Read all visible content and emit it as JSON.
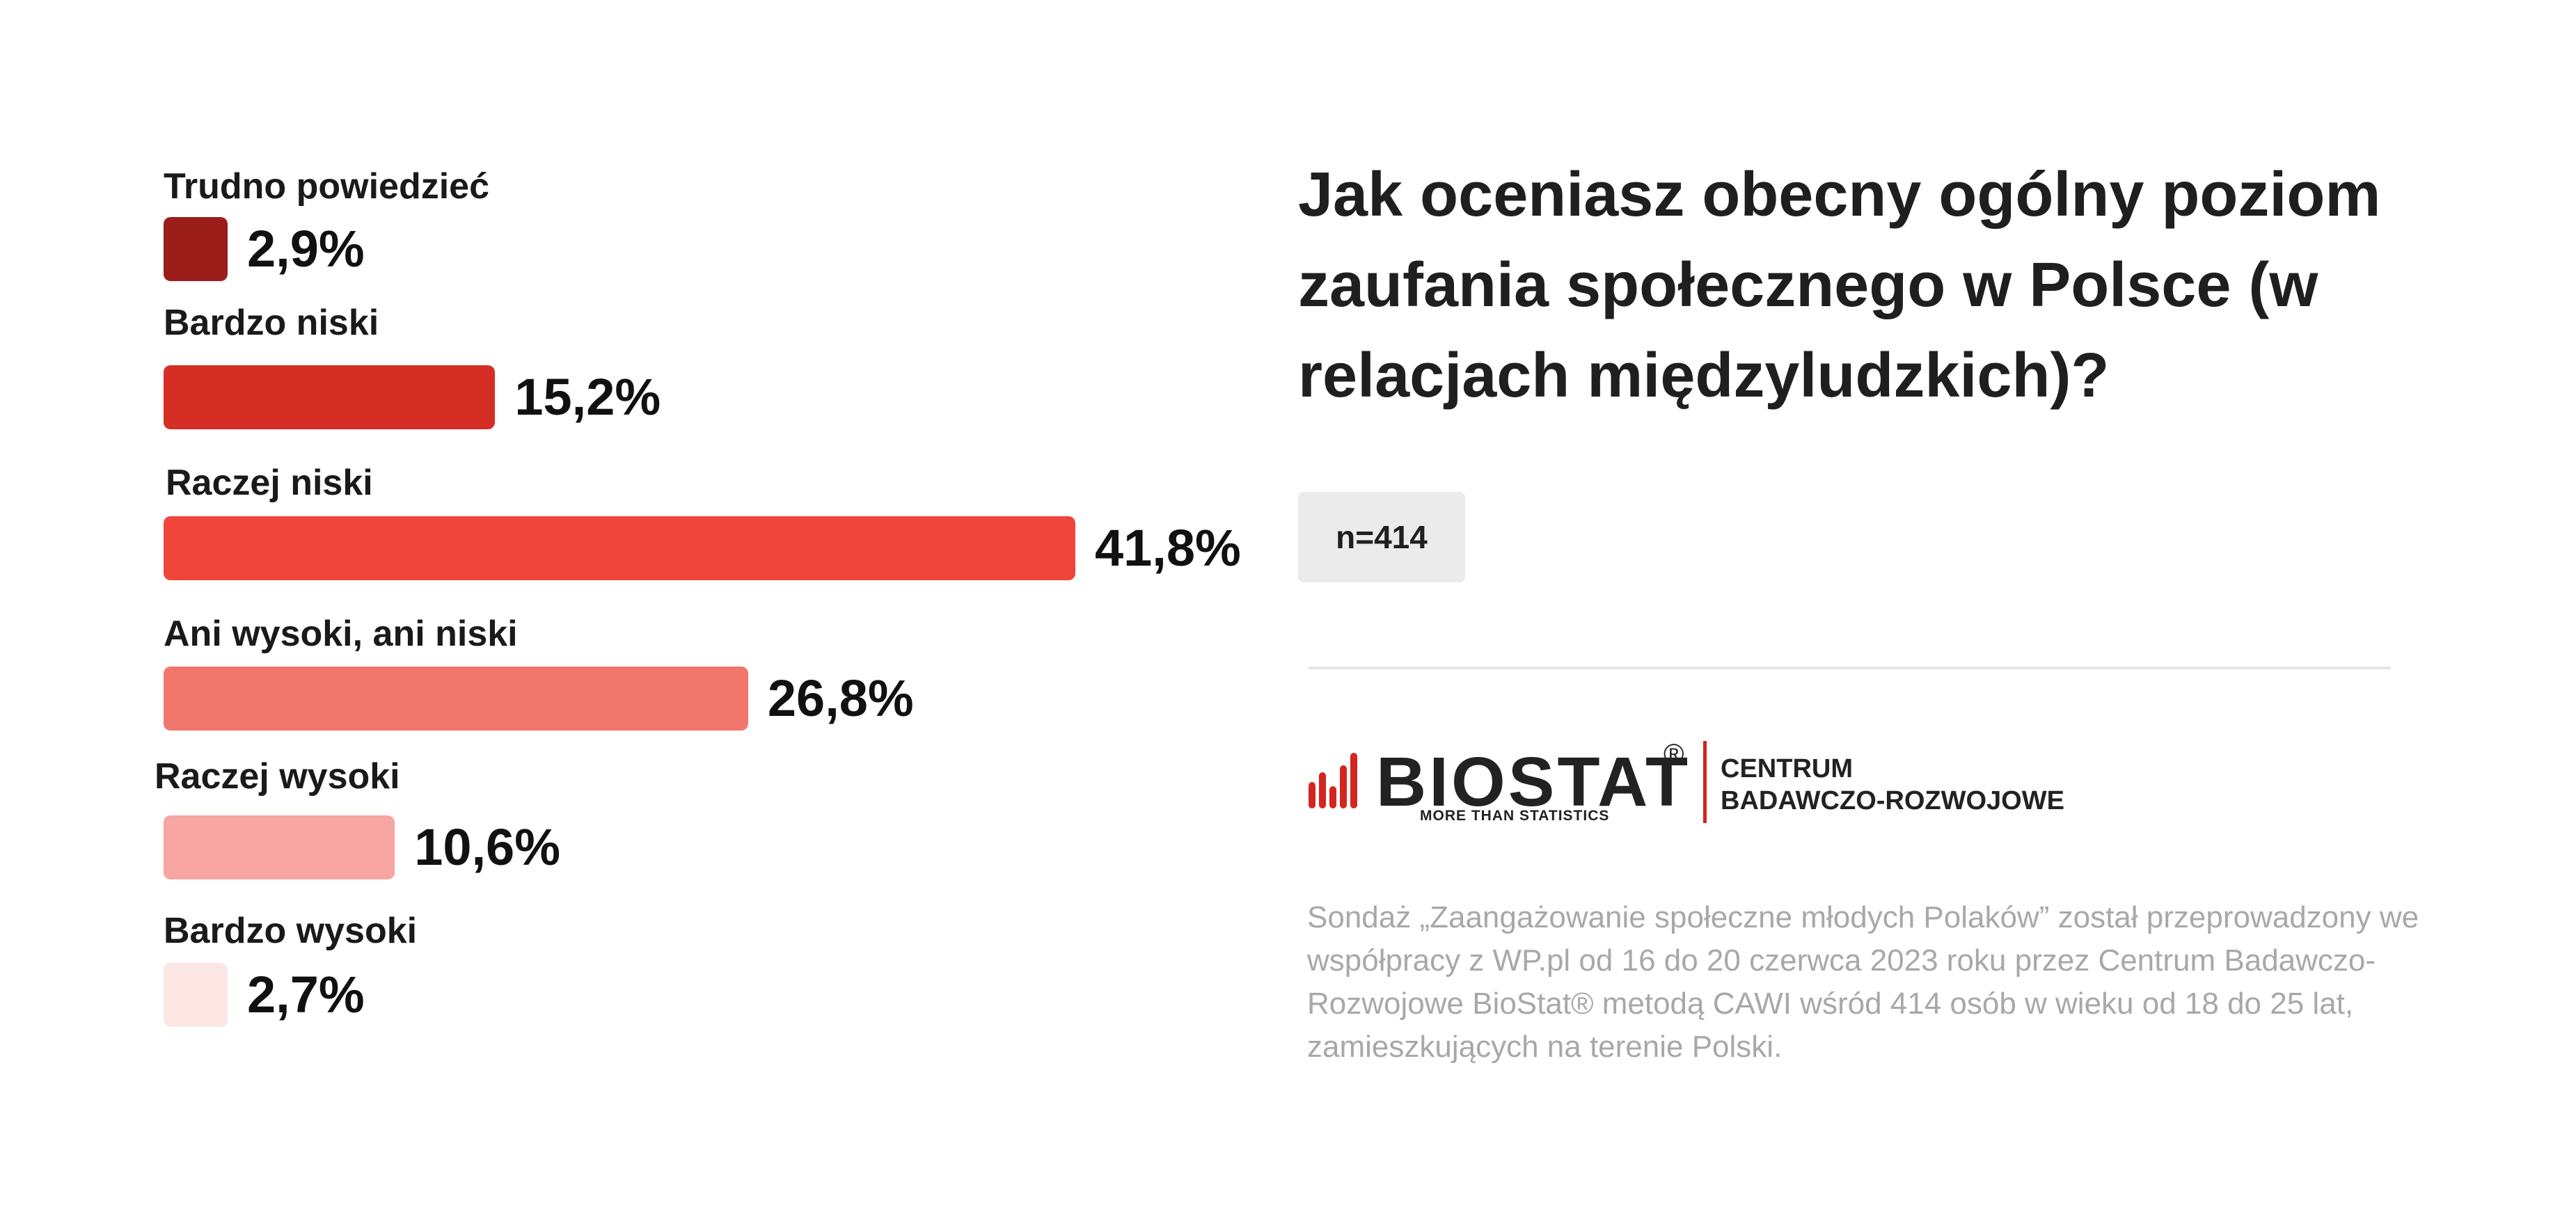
{
  "chart_data": {
    "type": "bar",
    "orientation": "horizontal",
    "title": "Jak oceniasz obecny ogólny poziom zaufania społecznego w Polsce (w relacjach międzyludzkich)?",
    "unit": "%",
    "categories": [
      "Trudno powiedzieć",
      "Bardzo niski",
      "Raczej niski",
      "Ani wysoki, ani niski",
      "Raczej wysoki",
      "Bardzo wysoki"
    ],
    "values": [
      2.9,
      15.2,
      41.8,
      26.8,
      10.6,
      2.7
    ],
    "value_labels": [
      "2,9%",
      "15,2%",
      "41,8%",
      "26,8%",
      "10,6%",
      "2,7%"
    ],
    "colors": [
      "#9b1e1a",
      "#d42e25",
      "#ef453b",
      "#f1766c",
      "#f6a5a0",
      "#fce6e3"
    ],
    "xlim": [
      0,
      41.8
    ],
    "grid": false,
    "legend": "none"
  },
  "question": "Jak oceniasz obecny ogólny poziom zaufania społecznego w Polsce (w relacjach międzyludzkich)?",
  "sample": "n=414",
  "logo": {
    "wordmark": "BIOSTAT",
    "registered": "®",
    "tagline": "MORE THAN STATISTICS",
    "centrum_line1": "CENTRUM",
    "centrum_line2": "BADAWCZO-ROZWOJOWE",
    "accent_color": "#d3261f"
  },
  "footnote": "Sondaż  „Zaangażowanie społeczne młodych Polaków” został przeprowadzony we współpracy z WP.pl od 16 do 20 czerwca 2023 roku przez Centrum Badawczo-Rozwojowe BioStat® metodą CAWI wśród 414 osób w wieku od 18 do 25 lat, zamieszkujących na terenie Polski."
}
